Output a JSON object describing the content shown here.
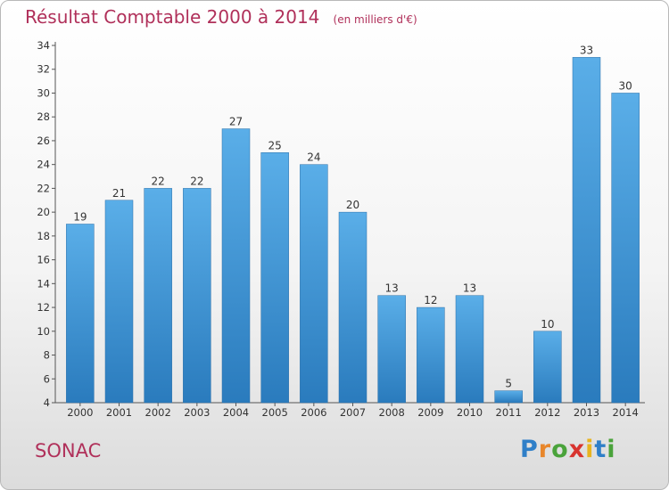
{
  "header": {
    "title": "Résultat Comptable 2000 à 2014",
    "subtitle": "(en milliers d'€)"
  },
  "footer": {
    "commune": "SONAC",
    "logo_text": [
      "P",
      "r",
      "o",
      "x",
      "i",
      "t",
      "i"
    ]
  },
  "colors": {
    "bar_light": "#5aaee8",
    "bar_dark": "#2a7bbd",
    "title": "#b0305a",
    "axis": "#555555"
  },
  "chart_data": {
    "type": "bar",
    "title": "Résultat Comptable 2000 à 2014",
    "subtitle": "(en milliers d'€)",
    "xlabel": "",
    "ylabel": "",
    "categories": [
      "2000",
      "2001",
      "2002",
      "2003",
      "2004",
      "2005",
      "2006",
      "2007",
      "2008",
      "2009",
      "2010",
      "2011",
      "2012",
      "2013",
      "2014"
    ],
    "values": [
      19,
      21,
      22,
      22,
      27,
      25,
      24,
      20,
      13,
      12,
      13,
      5,
      10,
      33,
      30
    ],
    "ylim": [
      4,
      34
    ],
    "yticks": [
      4,
      6,
      8,
      10,
      12,
      14,
      16,
      18,
      20,
      22,
      24,
      26,
      28,
      30,
      32,
      34
    ],
    "grid": false
  }
}
